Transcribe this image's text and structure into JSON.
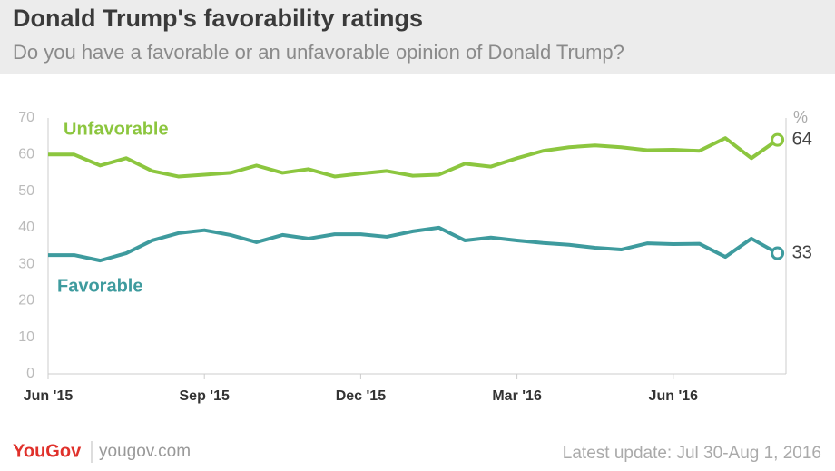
{
  "chart_data": {
    "type": "line",
    "title": "Donald Trump's favorability ratings",
    "subtitle": "Do you have a favorable or an unfavorable opinion of Donald Trump?",
    "ylabel": "%",
    "categories": [
      "Jun '15",
      null,
      null,
      null,
      null,
      null,
      "Sep '15",
      null,
      null,
      null,
      null,
      null,
      "Dec '15",
      null,
      null,
      null,
      null,
      null,
      "Mar '16",
      null,
      null,
      null,
      null,
      null,
      "Jun '16",
      null,
      null,
      null,
      null
    ],
    "series": [
      {
        "name": "Unfavorable",
        "color": "#8cc63f",
        "values": [
          60,
          60,
          57,
          59,
          55.5,
          54,
          54.5,
          55,
          57,
          55,
          56,
          54,
          54.8,
          55.5,
          54.2,
          54.5,
          57.5,
          56.7,
          59,
          61,
          62,
          62.5,
          62,
          61.2,
          61.3,
          61,
          64.5,
          59,
          64
        ]
      },
      {
        "name": "Favorable",
        "color": "#3e9b9e",
        "values": [
          32.5,
          32.5,
          31,
          33,
          36.5,
          38.5,
          39.3,
          38,
          36,
          38,
          37,
          38.2,
          38.2,
          37.5,
          39,
          40,
          36.5,
          37.3,
          36.5,
          35.8,
          35.3,
          34.5,
          34,
          35.7,
          35.5,
          35.6,
          32,
          37,
          33
        ]
      }
    ],
    "ylim": [
      0,
      70
    ],
    "yticks": [
      0,
      10,
      20,
      30,
      40,
      50,
      60,
      70
    ],
    "grid": false
  },
  "footer": {
    "brand": "YouGov",
    "site": "yougov.com",
    "update": "Latest update: Jul 30-Aug 1, 2016"
  }
}
